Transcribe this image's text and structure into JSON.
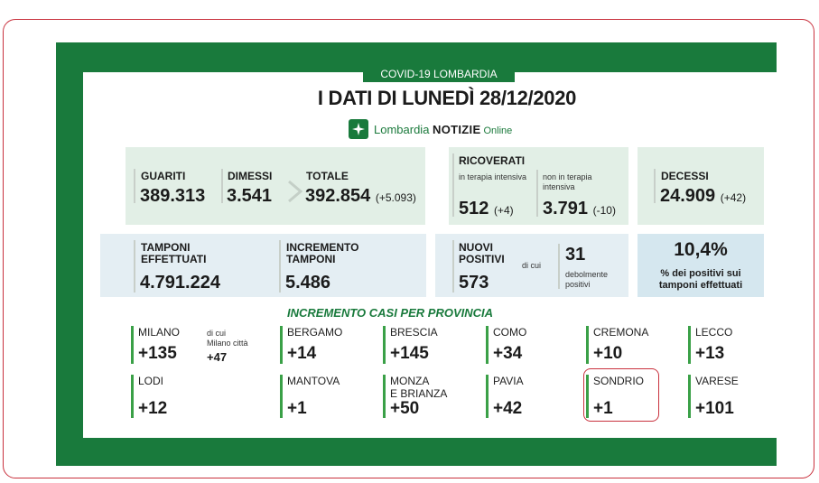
{
  "header": {
    "tag": "COVID-19 LOMBARDIA",
    "title": "I DATI DI LUNEDÌ 28/12/2020",
    "brand_main": "Lombardia ",
    "brand_notizie": "NOTIZIE",
    "brand_online": " Online"
  },
  "recovered": {
    "guariti_label": "GUARITI",
    "guariti_value": "389.313",
    "dimessi_label": "DIMESSI",
    "dimessi_value": "3.541",
    "totale_label": "TOTALE",
    "totale_value": "392.854",
    "totale_delta": "(+5.093)"
  },
  "hospital": {
    "label": "RICOVERATI",
    "icu_label": "in terapia intensiva",
    "icu_value": "512",
    "icu_delta": "(+4)",
    "non_icu_label": "non in terapia intensiva",
    "non_icu_value": "3.791",
    "non_icu_delta": "(-10)"
  },
  "deaths": {
    "label": "DECESSI",
    "value": "24.909",
    "delta": "(+42)"
  },
  "swabs": {
    "done_label_1": "TAMPONI",
    "done_label_2": "EFFETTUATI",
    "done_value": "4.791.224",
    "incr_label_1": "INCREMENTO",
    "incr_label_2": "TAMPONI",
    "incr_value": "5.486"
  },
  "positives": {
    "label_1": "NUOVI",
    "label_2": "POSITIVI",
    "value": "573",
    "of_which": "di cui",
    "weak_value": "31",
    "weak_label_1": "debolmente",
    "weak_label_2": "positivi"
  },
  "ratio": {
    "value": "10,4%",
    "label_1": "% dei positivi sui",
    "label_2": "tamponi effettuati"
  },
  "provinces_title": "INCREMENTO CASI PER PROVINCIA",
  "milano_note": {
    "line1": "di cui",
    "line2": "Milano città",
    "value": "+47"
  },
  "provinces": [
    {
      "name": "MILANO",
      "value": "+135"
    },
    {
      "name": "BERGAMO",
      "value": "+14"
    },
    {
      "name": "BRESCIA",
      "value": "+145"
    },
    {
      "name": "COMO",
      "value": "+34"
    },
    {
      "name": "CREMONA",
      "value": "+10"
    },
    {
      "name": "LECCO",
      "value": "+13"
    },
    {
      "name": "LODI",
      "value": "+12"
    },
    {
      "name": "MANTOVA",
      "value": "+1"
    },
    {
      "name": "MONZA",
      "name2": "E BRIANZA",
      "value": "+50"
    },
    {
      "name": "PAVIA",
      "value": "+42"
    },
    {
      "name": "SONDRIO",
      "value": "+1"
    },
    {
      "name": "VARESE",
      "value": "+101"
    }
  ],
  "colors": {
    "brand_green": "#197a3c",
    "bar_green": "#3aa047",
    "highlight_red": "#c9323e"
  }
}
